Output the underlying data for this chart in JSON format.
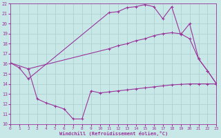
{
  "xlabel": "Windchill (Refroidissement éolien,°C)",
  "xlim": [
    0,
    23
  ],
  "ylim": [
    10,
    22
  ],
  "yticks": [
    10,
    11,
    12,
    13,
    14,
    15,
    16,
    17,
    18,
    19,
    20,
    21,
    22
  ],
  "xticks": [
    0,
    1,
    2,
    3,
    4,
    5,
    6,
    7,
    8,
    9,
    10,
    11,
    12,
    13,
    14,
    15,
    16,
    17,
    18,
    19,
    20,
    21,
    22,
    23
  ],
  "line_color": "#993399",
  "bg_color": "#c8e8e8",
  "grid_color": "#aacccc",
  "line1_x": [
    0,
    1,
    2,
    11,
    12,
    13,
    14,
    15,
    16,
    17,
    18,
    19,
    20,
    21,
    22,
    23
  ],
  "line1_y": [
    16.1,
    15.6,
    14.5,
    21.1,
    21.2,
    21.6,
    21.7,
    21.9,
    21.7,
    20.5,
    21.7,
    18.9,
    20.0,
    16.5,
    15.3,
    14.0
  ],
  "line2_x": [
    0,
    2,
    11,
    12,
    13,
    14,
    15,
    16,
    17,
    18,
    19,
    20,
    21,
    22,
    23
  ],
  "line2_y": [
    16.1,
    15.5,
    17.5,
    17.8,
    18.0,
    18.3,
    18.5,
    18.8,
    19.0,
    19.1,
    19.0,
    18.5,
    16.5,
    15.3,
    14.0
  ],
  "line3_x": [
    2,
    3,
    4,
    5,
    6,
    7,
    8,
    9,
    10,
    11,
    12,
    13,
    14,
    15,
    16,
    17,
    18,
    19,
    20,
    21,
    22,
    23
  ],
  "line3_y": [
    15.5,
    12.5,
    12.1,
    11.8,
    11.5,
    10.5,
    10.5,
    13.3,
    13.1,
    13.2,
    13.3,
    13.4,
    13.5,
    13.6,
    13.7,
    13.8,
    13.9,
    13.95,
    14.0,
    14.0,
    14.0,
    14.0
  ]
}
